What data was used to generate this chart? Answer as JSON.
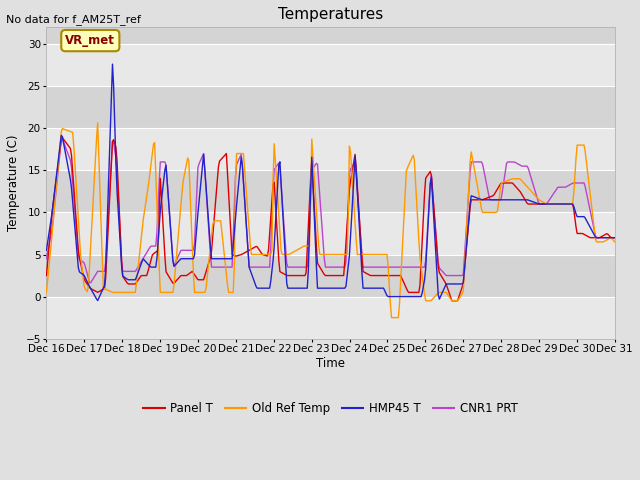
{
  "title": "Temperatures",
  "xlabel": "Time",
  "ylabel": "Temperature (C)",
  "top_label": "No data for f_AM25T_ref",
  "vr_met_label": "VR_met",
  "ylim": [
    -5,
    32
  ],
  "yticks": [
    -5,
    0,
    5,
    10,
    15,
    20,
    25,
    30
  ],
  "fig_bg": "#e8e8e8",
  "plot_bg": "#dcdcdc",
  "band_light": "#e8e8e8",
  "band_dark": "#d0d0d0",
  "line_colors": {
    "panel_t": "#dd0000",
    "old_ref_temp": "#ff9900",
    "hmp45_t": "#2222cc",
    "cnr1_prt": "#bb44cc"
  },
  "legend_labels": [
    "Panel T",
    "Old Ref Temp",
    "HMP45 T",
    "CNR1 PRT"
  ],
  "x_tick_labels": [
    "Dec 16",
    "Dec 17",
    "Dec 18",
    "Dec 19",
    "Dec 20",
    "Dec 21",
    "Dec 22",
    "Dec 23",
    "Dec 24",
    "Dec 25",
    "Dec 26",
    "Dec 27",
    "Dec 28",
    "Dec 29",
    "Dec 30",
    "Dec 31"
  ]
}
